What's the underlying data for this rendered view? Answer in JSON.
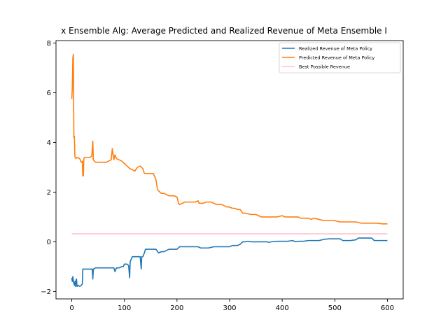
{
  "chart_data": {
    "type": "line",
    "title": "x Ensemble Alg: Average Predicted and Realized Revenue of Meta Ensemble I",
    "xlabel": "",
    "ylabel": "",
    "xlim": [
      -30,
      630
    ],
    "ylim": [
      -2.3,
      8.1
    ],
    "xticks": [
      0,
      100,
      200,
      300,
      400,
      500,
      600
    ],
    "yticks": [
      -2,
      0,
      2,
      4,
      6,
      8
    ],
    "grid": false,
    "legend_position": "top-right",
    "series": [
      {
        "name": "Realized Revenue of Meta Policy",
        "color": "#1f77b4",
        "points": [
          [
            0,
            -1.45
          ],
          [
            1,
            -1.6
          ],
          [
            2,
            -1.4
          ],
          [
            3,
            -1.55
          ],
          [
            4,
            -1.7
          ],
          [
            5,
            -1.75
          ],
          [
            6,
            -1.6
          ],
          [
            7,
            -1.8
          ],
          [
            8,
            -1.55
          ],
          [
            9,
            -1.5
          ],
          [
            10,
            -1.8
          ],
          [
            12,
            -1.75
          ],
          [
            15,
            -1.8
          ],
          [
            18,
            -1.75
          ],
          [
            20,
            -1.7
          ],
          [
            21,
            -1.1
          ],
          [
            25,
            -1.1
          ],
          [
            30,
            -1.1
          ],
          [
            35,
            -1.1
          ],
          [
            39,
            -1.1
          ],
          [
            40,
            -1.5
          ],
          [
            41,
            -1.1
          ],
          [
            45,
            -1.05
          ],
          [
            50,
            -1.05
          ],
          [
            55,
            -1.05
          ],
          [
            60,
            -1.05
          ],
          [
            65,
            -1.05
          ],
          [
            70,
            -1.05
          ],
          [
            75,
            -1.05
          ],
          [
            80,
            -1.05
          ],
          [
            82,
            -1.2
          ],
          [
            85,
            -1.05
          ],
          [
            90,
            -1.05
          ],
          [
            95,
            -1.0
          ],
          [
            98,
            -1.0
          ],
          [
            100,
            -0.9
          ],
          [
            105,
            -0.9
          ],
          [
            108,
            -0.95
          ],
          [
            110,
            -1.45
          ],
          [
            111,
            -0.8
          ],
          [
            115,
            -0.6
          ],
          [
            120,
            -0.6
          ],
          [
            125,
            -0.6
          ],
          [
            130,
            -0.6
          ],
          [
            132,
            -1.1
          ],
          [
            133,
            -0.6
          ],
          [
            135,
            -0.6
          ],
          [
            138,
            -0.45
          ],
          [
            140,
            -0.3
          ],
          [
            145,
            -0.3
          ],
          [
            150,
            -0.3
          ],
          [
            155,
            -0.3
          ],
          [
            160,
            -0.3
          ],
          [
            165,
            -0.45
          ],
          [
            170,
            -0.4
          ],
          [
            175,
            -0.4
          ],
          [
            180,
            -0.35
          ],
          [
            185,
            -0.3
          ],
          [
            190,
            -0.3
          ],
          [
            195,
            -0.3
          ],
          [
            200,
            -0.3
          ],
          [
            205,
            -0.2
          ],
          [
            210,
            -0.2
          ],
          [
            220,
            -0.2
          ],
          [
            230,
            -0.2
          ],
          [
            240,
            -0.2
          ],
          [
            245,
            -0.25
          ],
          [
            250,
            -0.25
          ],
          [
            260,
            -0.25
          ],
          [
            270,
            -0.2
          ],
          [
            280,
            -0.2
          ],
          [
            290,
            -0.2
          ],
          [
            300,
            -0.2
          ],
          [
            305,
            -0.15
          ],
          [
            310,
            -0.15
          ],
          [
            315,
            -0.15
          ],
          [
            320,
            -0.1
          ],
          [
            325,
            0.0
          ],
          [
            330,
            0.0
          ],
          [
            335,
            0.02
          ],
          [
            340,
            0.0
          ],
          [
            350,
            0.0
          ],
          [
            360,
            0.0
          ],
          [
            370,
            0.0
          ],
          [
            375,
            -0.02
          ],
          [
            380,
            0.0
          ],
          [
            390,
            0.02
          ],
          [
            400,
            0.02
          ],
          [
            410,
            0.02
          ],
          [
            420,
            0.05
          ],
          [
            425,
            0.0
          ],
          [
            430,
            0.02
          ],
          [
            440,
            0.02
          ],
          [
            450,
            0.05
          ],
          [
            460,
            0.05
          ],
          [
            470,
            0.05
          ],
          [
            480,
            0.1
          ],
          [
            490,
            0.12
          ],
          [
            500,
            0.12
          ],
          [
            510,
            0.12
          ],
          [
            515,
            0.05
          ],
          [
            520,
            0.05
          ],
          [
            530,
            0.05
          ],
          [
            540,
            0.08
          ],
          [
            545,
            0.15
          ],
          [
            550,
            0.15
          ],
          [
            560,
            0.15
          ],
          [
            565,
            0.15
          ],
          [
            570,
            0.15
          ],
          [
            575,
            0.05
          ],
          [
            580,
            0.05
          ],
          [
            590,
            0.05
          ],
          [
            600,
            0.05
          ]
        ]
      },
      {
        "name": "Predicted Revenue of Meta Policy",
        "color": "#ff7f0e",
        "points": [
          [
            0,
            5.75
          ],
          [
            1,
            6.2
          ],
          [
            2,
            7.4
          ],
          [
            3,
            7.55
          ],
          [
            4,
            4.2
          ],
          [
            5,
            4.25
          ],
          [
            6,
            3.4
          ],
          [
            8,
            3.35
          ],
          [
            10,
            3.4
          ],
          [
            15,
            3.35
          ],
          [
            18,
            3.2
          ],
          [
            20,
            3.25
          ],
          [
            21,
            2.65
          ],
          [
            22,
            2.65
          ],
          [
            23,
            3.35
          ],
          [
            25,
            3.4
          ],
          [
            30,
            3.4
          ],
          [
            35,
            3.4
          ],
          [
            38,
            3.45
          ],
          [
            40,
            4.05
          ],
          [
            41,
            3.3
          ],
          [
            45,
            3.2
          ],
          [
            50,
            3.2
          ],
          [
            55,
            3.2
          ],
          [
            60,
            3.2
          ],
          [
            65,
            3.2
          ],
          [
            70,
            3.25
          ],
          [
            75,
            3.3
          ],
          [
            77,
            3.75
          ],
          [
            78,
            3.6
          ],
          [
            80,
            3.3
          ],
          [
            82,
            3.5
          ],
          [
            85,
            3.35
          ],
          [
            90,
            3.3
          ],
          [
            95,
            3.25
          ],
          [
            100,
            3.15
          ],
          [
            105,
            3.05
          ],
          [
            110,
            2.95
          ],
          [
            115,
            2.9
          ],
          [
            120,
            2.85
          ],
          [
            125,
            3.0
          ],
          [
            130,
            3.05
          ],
          [
            135,
            2.95
          ],
          [
            138,
            2.75
          ],
          [
            140,
            2.75
          ],
          [
            145,
            2.75
          ],
          [
            150,
            2.75
          ],
          [
            155,
            2.75
          ],
          [
            160,
            2.5
          ],
          [
            163,
            2.1
          ],
          [
            165,
            2.05
          ],
          [
            170,
            1.95
          ],
          [
            175,
            1.95
          ],
          [
            180,
            1.9
          ],
          [
            185,
            1.85
          ],
          [
            190,
            1.85
          ],
          [
            195,
            1.85
          ],
          [
            200,
            1.8
          ],
          [
            203,
            1.55
          ],
          [
            205,
            1.5
          ],
          [
            210,
            1.55
          ],
          [
            215,
            1.6
          ],
          [
            220,
            1.6
          ],
          [
            225,
            1.6
          ],
          [
            230,
            1.6
          ],
          [
            235,
            1.6
          ],
          [
            240,
            1.65
          ],
          [
            242,
            1.55
          ],
          [
            245,
            1.55
          ],
          [
            250,
            1.55
          ],
          [
            255,
            1.6
          ],
          [
            260,
            1.6
          ],
          [
            265,
            1.6
          ],
          [
            270,
            1.55
          ],
          [
            275,
            1.5
          ],
          [
            280,
            1.5
          ],
          [
            285,
            1.5
          ],
          [
            290,
            1.45
          ],
          [
            295,
            1.4
          ],
          [
            300,
            1.4
          ],
          [
            305,
            1.35
          ],
          [
            310,
            1.35
          ],
          [
            315,
            1.3
          ],
          [
            320,
            1.3
          ],
          [
            325,
            1.15
          ],
          [
            330,
            1.15
          ],
          [
            340,
            1.1
          ],
          [
            350,
            1.1
          ],
          [
            355,
            1.05
          ],
          [
            360,
            1.0
          ],
          [
            370,
            1.0
          ],
          [
            380,
            1.0
          ],
          [
            390,
            1.0
          ],
          [
            400,
            1.05
          ],
          [
            405,
            1.0
          ],
          [
            410,
            1.0
          ],
          [
            420,
            1.0
          ],
          [
            430,
            1.0
          ],
          [
            435,
            0.95
          ],
          [
            440,
            0.95
          ],
          [
            450,
            0.95
          ],
          [
            455,
            0.9
          ],
          [
            460,
            0.95
          ],
          [
            470,
            0.9
          ],
          [
            480,
            0.85
          ],
          [
            490,
            0.85
          ],
          [
            500,
            0.85
          ],
          [
            510,
            0.8
          ],
          [
            520,
            0.8
          ],
          [
            530,
            0.8
          ],
          [
            540,
            0.8
          ],
          [
            550,
            0.75
          ],
          [
            560,
            0.75
          ],
          [
            570,
            0.75
          ],
          [
            580,
            0.75
          ],
          [
            590,
            0.72
          ],
          [
            600,
            0.72
          ]
        ]
      },
      {
        "name": "Best Possible Revenue",
        "color": "#ffc0cb",
        "points": [
          [
            0,
            0.32
          ],
          [
            600,
            0.32
          ]
        ]
      }
    ]
  }
}
